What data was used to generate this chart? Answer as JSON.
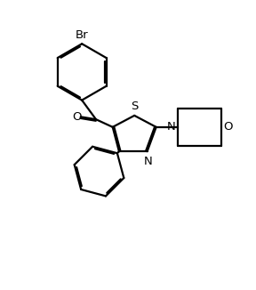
{
  "background_color": "#ffffff",
  "line_color": "#000000",
  "line_width": 1.6,
  "dbo": 0.055,
  "font_size": 9.5,
  "figsize": [
    2.88,
    3.26
  ],
  "dpi": 100,
  "xlim": [
    0,
    10
  ],
  "ylim": [
    0,
    11.3
  ]
}
